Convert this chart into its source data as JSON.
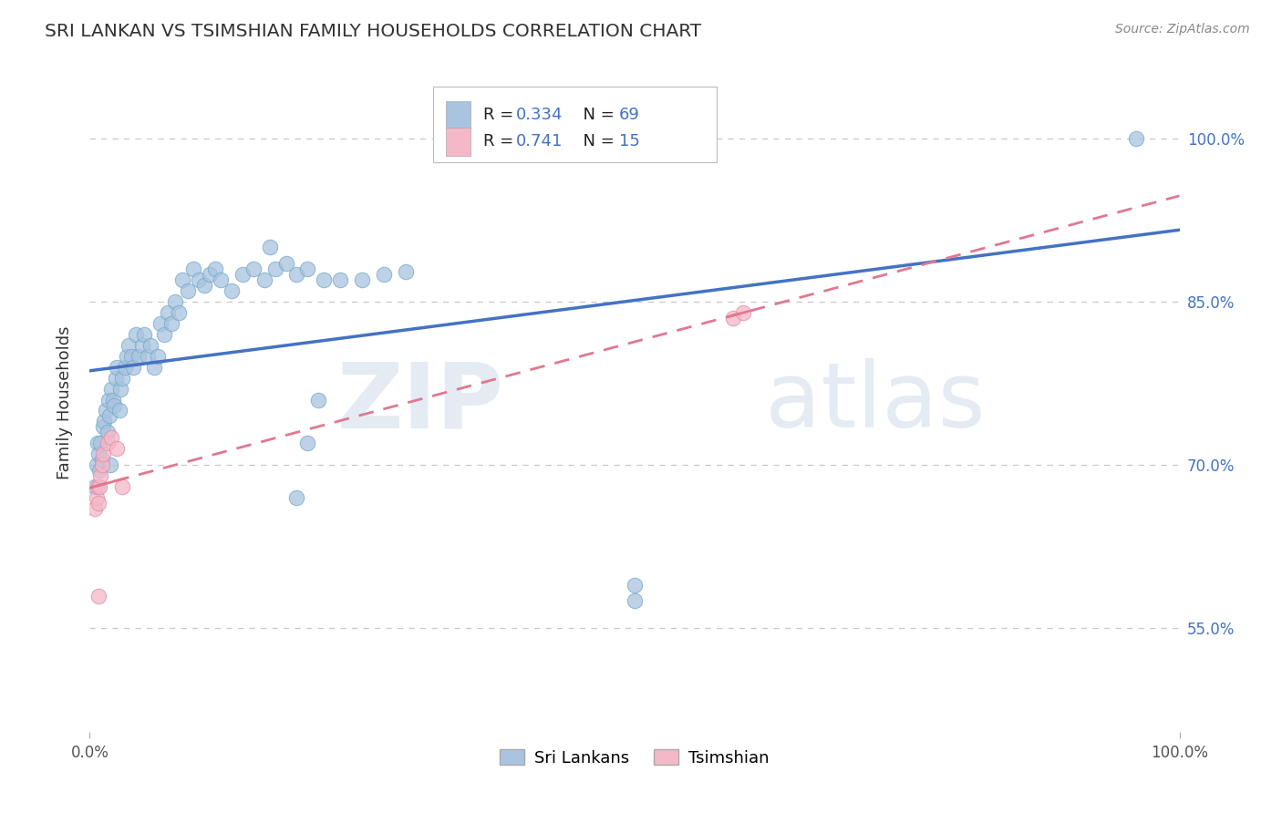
{
  "title": "SRI LANKAN VS TSIMSHIAN FAMILY HOUSEHOLDS CORRELATION CHART",
  "source": "Source: ZipAtlas.com",
  "ylabel": "Family Households",
  "ytick_labels": [
    "55.0%",
    "70.0%",
    "85.0%",
    "100.0%"
  ],
  "ytick_vals": [
    0.55,
    0.7,
    0.85,
    1.0
  ],
  "xmin": 0.0,
  "xmax": 1.0,
  "ymin": 0.455,
  "ymax": 1.06,
  "sri_lankan_x": [
    0.005,
    0.006,
    0.007,
    0.008,
    0.009,
    0.01,
    0.011,
    0.012,
    0.013,
    0.015,
    0.016,
    0.017,
    0.018,
    0.019,
    0.02,
    0.021,
    0.022,
    0.024,
    0.025,
    0.027,
    0.028,
    0.03,
    0.032,
    0.034,
    0.036,
    0.038,
    0.04,
    0.042,
    0.045,
    0.048,
    0.05,
    0.053,
    0.056,
    0.059,
    0.062,
    0.065,
    0.068,
    0.072,
    0.075,
    0.078,
    0.082,
    0.085,
    0.09,
    0.095,
    0.1,
    0.105,
    0.11,
    0.115,
    0.12,
    0.13,
    0.14,
    0.15,
    0.16,
    0.17,
    0.18,
    0.19,
    0.2,
    0.215,
    0.23,
    0.25,
    0.27,
    0.29,
    0.21,
    0.2,
    0.19,
    0.5,
    0.165,
    0.96,
    0.5
  ],
  "sri_lankan_y": [
    0.68,
    0.7,
    0.72,
    0.71,
    0.695,
    0.72,
    0.705,
    0.735,
    0.74,
    0.75,
    0.73,
    0.76,
    0.745,
    0.7,
    0.77,
    0.76,
    0.755,
    0.78,
    0.79,
    0.75,
    0.77,
    0.78,
    0.79,
    0.8,
    0.81,
    0.8,
    0.79,
    0.82,
    0.8,
    0.81,
    0.82,
    0.8,
    0.81,
    0.79,
    0.8,
    0.83,
    0.82,
    0.84,
    0.83,
    0.85,
    0.84,
    0.87,
    0.86,
    0.88,
    0.87,
    0.865,
    0.875,
    0.88,
    0.87,
    0.86,
    0.875,
    0.88,
    0.87,
    0.88,
    0.885,
    0.875,
    0.88,
    0.87,
    0.87,
    0.87,
    0.875,
    0.878,
    0.76,
    0.72,
    0.67,
    0.575,
    0.9,
    1.0,
    0.59
  ],
  "tsimshian_x": [
    0.005,
    0.006,
    0.007,
    0.008,
    0.009,
    0.01,
    0.011,
    0.012,
    0.016,
    0.02,
    0.025,
    0.03,
    0.59,
    0.6,
    0.008
  ],
  "tsimshian_y": [
    0.66,
    0.67,
    0.68,
    0.665,
    0.68,
    0.69,
    0.7,
    0.71,
    0.72,
    0.725,
    0.715,
    0.68,
    0.835,
    0.84,
    0.58
  ],
  "sri_lankan_color": "#a8c4e0",
  "sri_lankan_edge_color": "#7aaac8",
  "tsimshian_color": "#f4b8c8",
  "tsimshian_edge_color": "#e090a8",
  "sri_lankan_line_color": "#4472c4",
  "tsimshian_line_color": "#e07890",
  "R_sri": 0.334,
  "N_sri": 69,
  "R_tsim": 0.741,
  "N_tsim": 15,
  "watermark_zip": "ZIP",
  "watermark_atlas": "atlas",
  "legend_labels": [
    "Sri Lankans",
    "Tsimshian"
  ],
  "grid_color": "#c8c8c8",
  "title_color": "#333333",
  "source_color": "#888888",
  "tick_color": "#4472c4",
  "legend_r_color": "#4472c4",
  "legend_n_color": "#4472c4"
}
